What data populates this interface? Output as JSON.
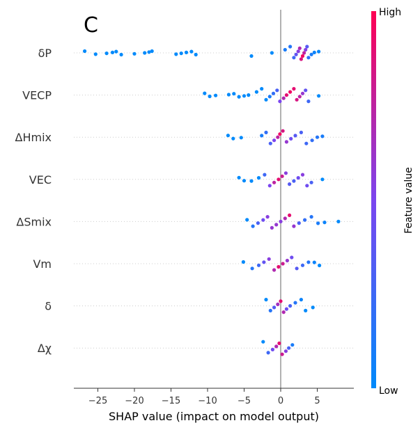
{
  "panel_label": "C",
  "colors": {
    "low": "#008afb",
    "mid": "#7b45ef",
    "high": "#ff0052",
    "zero_line": "#999999",
    "row_guide": "#cccccc"
  },
  "colorbar": {
    "title": "Feature value",
    "high_label": "High",
    "low_label": "Low"
  },
  "chart_data": {
    "type": "scatter",
    "subtype": "shap-beeswarm",
    "title": "",
    "xlabel": "SHAP value (impact on model output)",
    "ylabel": "",
    "xlim": [
      -28.5,
      9.5
    ],
    "xticks": [
      -25,
      -20,
      -15,
      -10,
      -5,
      0,
      5
    ],
    "xtick_labels": [
      "−25",
      "−20",
      "−15",
      "−10",
      "−5",
      "0",
      "5"
    ],
    "grid": false,
    "legend": "colorbar-right",
    "features": [
      {
        "name": "δP",
        "points": [
          [
            -26.8,
            0.0
          ],
          [
            -25.3,
            0.0
          ],
          [
            -23.8,
            0.0
          ],
          [
            -23.0,
            0.0
          ],
          [
            -22.5,
            0.0
          ],
          [
            -21.8,
            0.0
          ],
          [
            -20.0,
            0.0
          ],
          [
            -18.6,
            0.0
          ],
          [
            -18.0,
            0.0
          ],
          [
            -17.6,
            0.0
          ],
          [
            -14.3,
            0.0
          ],
          [
            -13.6,
            0.0
          ],
          [
            -12.9,
            0.0
          ],
          [
            -12.2,
            0.0
          ],
          [
            -11.6,
            0.0
          ],
          [
            -4.0,
            0.0
          ],
          [
            -1.2,
            0.0
          ],
          [
            0.6,
            0.1
          ],
          [
            1.3,
            0.15
          ],
          [
            1.8,
            0.25
          ],
          [
            2.1,
            0.4
          ],
          [
            2.4,
            0.55
          ],
          [
            2.6,
            0.7
          ],
          [
            2.8,
            0.85
          ],
          [
            3.0,
            0.95
          ],
          [
            3.2,
            0.75
          ],
          [
            3.4,
            0.55
          ],
          [
            3.6,
            0.35
          ],
          [
            3.8,
            0.2
          ],
          [
            4.2,
            0.1
          ],
          [
            4.6,
            0.05
          ],
          [
            5.2,
            0.02
          ]
        ]
      },
      {
        "name": "VECP",
        "points": [
          [
            -10.4,
            0.0
          ],
          [
            -9.7,
            0.0
          ],
          [
            -8.9,
            0.0
          ],
          [
            -7.1,
            0.0
          ],
          [
            -6.4,
            0.0
          ],
          [
            -5.7,
            0.0
          ],
          [
            -5.0,
            0.0
          ],
          [
            -4.4,
            0.0
          ],
          [
            -3.3,
            0.0
          ],
          [
            -2.6,
            0.0
          ],
          [
            -2.0,
            0.0
          ],
          [
            -1.5,
            0.1
          ],
          [
            -1.0,
            0.2
          ],
          [
            -0.5,
            0.3
          ],
          [
            -0.1,
            0.5
          ],
          [
            0.4,
            0.7
          ],
          [
            0.8,
            0.9
          ],
          [
            1.3,
            0.95
          ],
          [
            1.8,
            0.9
          ],
          [
            2.2,
            0.85
          ],
          [
            2.6,
            0.75
          ],
          [
            3.0,
            0.6
          ],
          [
            3.4,
            0.4
          ],
          [
            3.8,
            0.25
          ],
          [
            5.2,
            0.0
          ]
        ]
      },
      {
        "name": "ΔHmix",
        "points": [
          [
            -7.2,
            0.0
          ],
          [
            -6.5,
            0.0
          ],
          [
            -5.4,
            0.0
          ],
          [
            -2.6,
            0.1
          ],
          [
            -2.0,
            0.2
          ],
          [
            -1.4,
            0.3
          ],
          [
            -0.9,
            0.5
          ],
          [
            -0.4,
            0.75
          ],
          [
            -0.1,
            0.95
          ],
          [
            0.3,
            0.85
          ],
          [
            0.8,
            0.6
          ],
          [
            1.4,
            0.45
          ],
          [
            2.0,
            0.35
          ],
          [
            2.8,
            0.3
          ],
          [
            3.5,
            0.25
          ],
          [
            4.3,
            0.2
          ],
          [
            5.0,
            0.15
          ],
          [
            5.7,
            0.1
          ]
        ]
      },
      {
        "name": "VEC",
        "points": [
          [
            -5.7,
            0.0
          ],
          [
            -5.0,
            0.0
          ],
          [
            -4.0,
            0.0
          ],
          [
            -3.0,
            0.0
          ],
          [
            -2.2,
            0.25
          ],
          [
            -1.5,
            0.5
          ],
          [
            -0.9,
            0.75
          ],
          [
            -0.3,
            0.9
          ],
          [
            0.2,
            0.8
          ],
          [
            0.7,
            0.55
          ],
          [
            1.2,
            0.35
          ],
          [
            1.8,
            0.3
          ],
          [
            2.4,
            0.45
          ],
          [
            3.0,
            0.55
          ],
          [
            3.6,
            0.45
          ],
          [
            4.2,
            0.3
          ],
          [
            5.7,
            0.0
          ]
        ]
      },
      {
        "name": "ΔSmix",
        "points": [
          [
            -4.6,
            0.0
          ],
          [
            -3.8,
            0.15
          ],
          [
            -3.1,
            0.3
          ],
          [
            -2.4,
            0.45
          ],
          [
            -1.8,
            0.55
          ],
          [
            -1.2,
            0.6
          ],
          [
            -0.6,
            0.6
          ],
          [
            0.0,
            0.55
          ],
          [
            0.6,
            0.7
          ],
          [
            1.2,
            0.9
          ],
          [
            1.8,
            0.6
          ],
          [
            2.5,
            0.3
          ],
          [
            3.3,
            0.2
          ],
          [
            4.2,
            0.15
          ],
          [
            5.1,
            0.1
          ],
          [
            6.0,
            0.05
          ],
          [
            7.9,
            0.0
          ]
        ]
      },
      {
        "name": "Vm",
        "points": [
          [
            -5.1,
            0.0
          ],
          [
            -3.9,
            0.15
          ],
          [
            -3.0,
            0.25
          ],
          [
            -2.3,
            0.4
          ],
          [
            -1.6,
            0.55
          ],
          [
            -0.9,
            0.7
          ],
          [
            -0.3,
            0.9
          ],
          [
            0.3,
            0.8
          ],
          [
            0.9,
            0.6
          ],
          [
            1.5,
            0.45
          ],
          [
            2.2,
            0.35
          ],
          [
            3.0,
            0.25
          ],
          [
            3.8,
            0.15
          ],
          [
            4.6,
            0.05
          ],
          [
            5.3,
            0.0
          ]
        ]
      },
      {
        "name": "δ",
        "points": [
          [
            -2.0,
            0.0
          ],
          [
            -1.4,
            0.15
          ],
          [
            -0.9,
            0.35
          ],
          [
            -0.4,
            0.65
          ],
          [
            0.0,
            0.9
          ],
          [
            0.4,
            0.7
          ],
          [
            0.8,
            0.45
          ],
          [
            1.3,
            0.3
          ],
          [
            2.0,
            0.15
          ],
          [
            2.8,
            0.05
          ],
          [
            3.4,
            0.0
          ],
          [
            4.4,
            0.0
          ]
        ]
      },
      {
        "name": "Δχ",
        "points": [
          [
            -2.4,
            0.0
          ],
          [
            -1.7,
            0.25
          ],
          [
            -1.1,
            0.45
          ],
          [
            -0.6,
            0.7
          ],
          [
            -0.2,
            0.9
          ],
          [
            0.2,
            0.8
          ],
          [
            0.7,
            0.55
          ],
          [
            1.1,
            0.3
          ],
          [
            1.6,
            0.1
          ]
        ]
      }
    ]
  }
}
